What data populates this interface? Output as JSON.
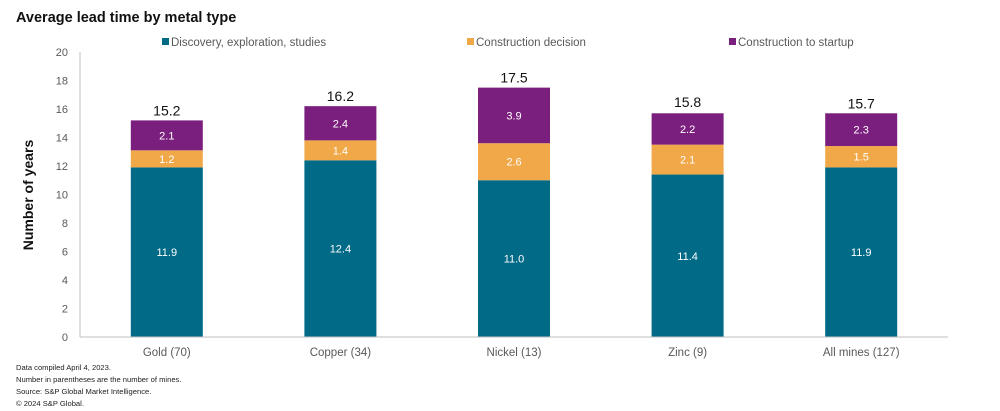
{
  "chart_data": {
    "type": "bar",
    "stacked": true,
    "title": "Average lead time by metal type",
    "xlabel": "",
    "ylabel": "Number of years",
    "ylim": [
      0,
      20
    ],
    "yticks": [
      0,
      2,
      4,
      6,
      8,
      10,
      12,
      14,
      16,
      18,
      20
    ],
    "grid": false,
    "legend_position": "top",
    "categories": [
      "Gold (70)",
      "Copper (34)",
      "Nickel (13)",
      "Zinc (9)",
      "All mines (127)"
    ],
    "series": [
      {
        "name": "Discovery, exploration, studies",
        "color": "#006A87",
        "values": [
          11.9,
          12.4,
          11.0,
          11.4,
          11.9
        ]
      },
      {
        "name": "Construction decision",
        "color": "#F0A848",
        "values": [
          1.2,
          1.4,
          2.6,
          2.1,
          1.5
        ]
      },
      {
        "name": "Construction to startup",
        "color": "#7B1F7E",
        "values": [
          2.1,
          2.4,
          3.9,
          2.2,
          2.3
        ]
      }
    ],
    "totals": [
      15.2,
      16.2,
      17.5,
      15.8,
      15.7
    ],
    "total_labels": [
      "15.2",
      "16.2",
      "17.5",
      "15.8",
      "15.7"
    ],
    "segment_labels": [
      [
        "11.9",
        "12.4",
        "11.0",
        "11.4",
        "11.9"
      ],
      [
        "1.2",
        "1.4",
        "2.6",
        "2.1",
        "1.5"
      ],
      [
        "2.1",
        "2.4",
        "3.9",
        "2.2",
        "2.3"
      ]
    ]
  },
  "footnotes": [
    "Data compiled April 4, 2023.",
    "Number in parentheses are the number of mines.",
    "Source: S&P Global Market Intelligence.",
    "© 2024 S&P Global."
  ]
}
